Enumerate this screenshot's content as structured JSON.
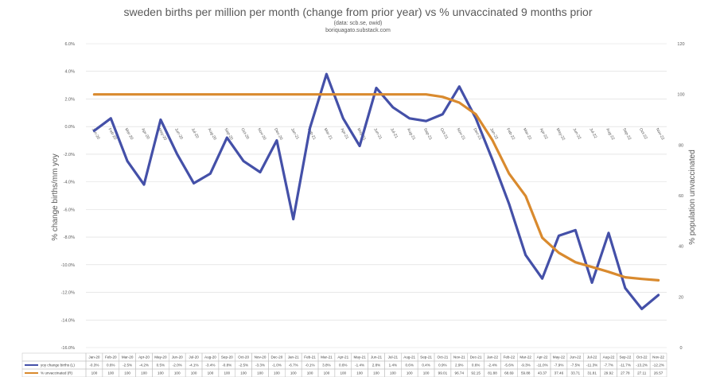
{
  "chart_data": {
    "type": "line",
    "title": "sweden births per million per month (change from prior year) vs % unvaccinated 9 months prior",
    "subtitle_lines": [
      "(data: scb.se, owid)",
      "boriquagato.substack.com"
    ],
    "ylabel_left": "% change births/mm yoy",
    "ylabel_right": "% population unvaccinated",
    "ylim_left": [
      -16,
      6
    ],
    "ylim_right": [
      0,
      120
    ],
    "left_ticks": [
      "6.0%",
      "4.0%",
      "2.0%",
      "0.0%",
      "-2.0%",
      "-4.0%",
      "-6.0%",
      "-8.0%",
      "-10.0%",
      "-12.0%",
      "-14.0%",
      "-16.0%"
    ],
    "right_ticks": [
      "120",
      "100",
      "80",
      "60",
      "40",
      "20",
      "0"
    ],
    "categories": [
      "Jan-20",
      "Feb-20",
      "Mar-20",
      "Apr-20",
      "May-20",
      "Jun-20",
      "Jul-20",
      "Aug-20",
      "Sep-20",
      "Oct-20",
      "Nov-20",
      "Dec-20",
      "Jan-21",
      "Feb-21",
      "Mar-21",
      "Apr-21",
      "May-21",
      "Jun-21",
      "Jul-21",
      "Aug-21",
      "Sep-21",
      "Oct-21",
      "Nov-21",
      "Dec-21",
      "Jan-22",
      "Feb-22",
      "Mar-22",
      "Apr-22",
      "May-22",
      "Jun-22",
      "Jul-22",
      "Aug-22",
      "Sep-22",
      "Oct-22",
      "Nov-22"
    ],
    "series": [
      {
        "name": "yoy change births (L)",
        "axis": "left",
        "color": "#4450a8",
        "values": [
          -0.3,
          0.6,
          -2.5,
          -4.2,
          0.5,
          -2.0,
          -4.1,
          -3.4,
          -0.8,
          -2.5,
          -3.3,
          -1.0,
          -6.7,
          -0.1,
          3.8,
          0.6,
          -1.4,
          2.8,
          1.4,
          0.6,
          0.4,
          0.9,
          2.9,
          0.6,
          -2.4,
          -5.6,
          -9.3,
          -11.0,
          -7.9,
          -7.5,
          -11.3,
          -7.7,
          -11.7,
          -13.2,
          -12.2
        ],
        "labels": [
          "-0.3%",
          "0.6%",
          "-2.5%",
          "-4.2%",
          "0.5%",
          "-2.0%",
          "-4.1%",
          "-3.4%",
          "-0.8%",
          "-2.5%",
          "-3.3%",
          "-1.0%",
          "-6.7%",
          "-0.1%",
          "3.8%",
          "0.6%",
          "-1.4%",
          "2.8%",
          "1.4%",
          "0.6%",
          "0.4%",
          "0.9%",
          "2.9%",
          "0.6%",
          "-2.4%",
          "-5.6%",
          "-9.3%",
          "-11.0%",
          "-7.9%",
          "-7.5%",
          "-11.3%",
          "-7.7%",
          "-11.7%",
          "-13.2%",
          "-12.2%"
        ]
      },
      {
        "name": "% unvaccinated (R)",
        "axis": "right",
        "color": "#d98a2e",
        "values": [
          100,
          100,
          100,
          100,
          100,
          100,
          100,
          100,
          100,
          100,
          100,
          100,
          100,
          100,
          100,
          100,
          100,
          100,
          100,
          100,
          100,
          99.01,
          96.74,
          92.15,
          81.88,
          68.69,
          59.88,
          43.37,
          37.46,
          33.71,
          31.81,
          29.92,
          27.78,
          27.11,
          26.57
        ],
        "labels": [
          "100",
          "100",
          "100",
          "100",
          "100",
          "100",
          "100",
          "100",
          "100",
          "100",
          "100",
          "100",
          "100",
          "100",
          "100",
          "100",
          "100",
          "100",
          "100",
          "100",
          "100",
          "99.01",
          "96.74",
          "92.15",
          "81.88",
          "68.69",
          "59.88",
          "43.37",
          "37.46",
          "33.71",
          "31.81",
          "29.92",
          "27.78",
          "27.11",
          "26.57"
        ]
      }
    ],
    "grid": true,
    "legend": "data-table-below"
  }
}
